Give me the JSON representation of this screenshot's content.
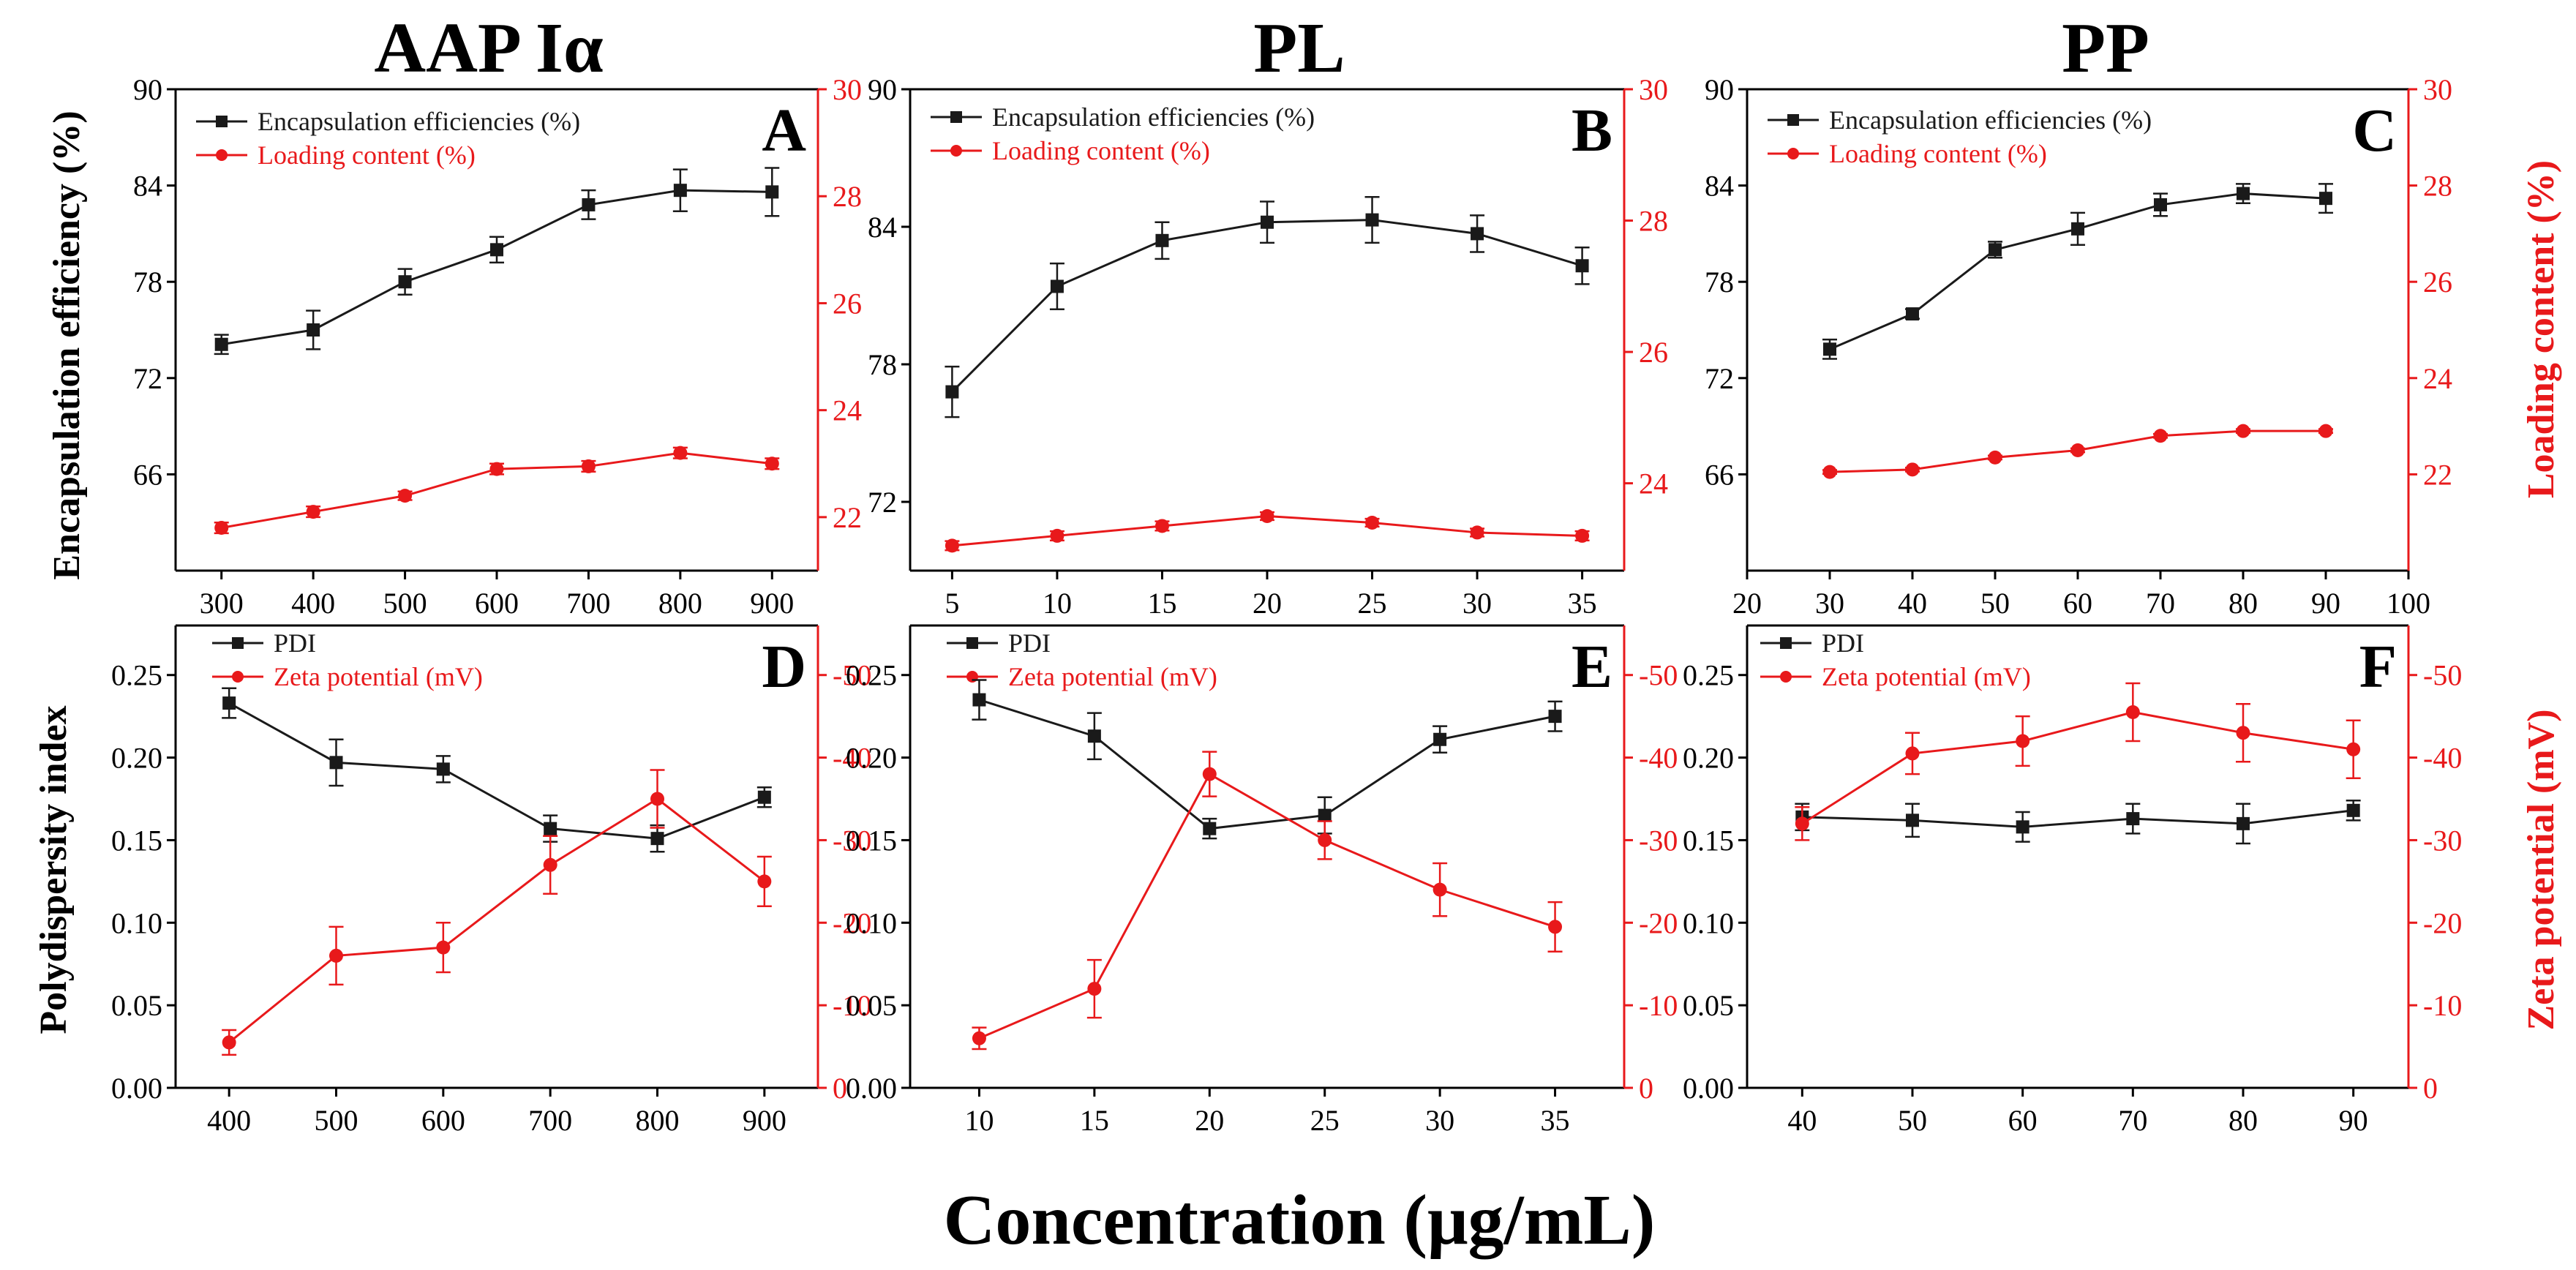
{
  "figure": {
    "column_titles": [
      "AAP Iα",
      "PL",
      "PP"
    ],
    "x_axis_title": "Concentration (μg/mL)",
    "row_axis_titles": {
      "top_left": "Encapsulation efficiency (%)",
      "top_right": "Loading content (%)",
      "bottom_left": "Polydispersity index",
      "bottom_right": "Zeta potential (mV)"
    },
    "colors": {
      "black_series": "#1a1a1a",
      "red_series": "#e8191b",
      "red_axis": "#e8191b"
    }
  },
  "chart_data": [
    {
      "panel": "A",
      "type": "line",
      "x": [
        300,
        400,
        500,
        600,
        700,
        800,
        900
      ],
      "xlim": [
        250,
        950
      ],
      "xticks": [
        300,
        400,
        500,
        600,
        700,
        800,
        900
      ],
      "ylim_left": [
        60,
        90
      ],
      "yticks_left": [
        66,
        72,
        78,
        84,
        90
      ],
      "ylim_right": [
        21,
        30
      ],
      "yticks_right": [
        22,
        24,
        26,
        28,
        30
      ],
      "legend": [
        "Encapsulation efficiencies (%)",
        "Loading content (%)"
      ],
      "series": [
        {
          "name": "Encapsulation efficiencies (%)",
          "axis": "left",
          "marker": "square",
          "values": [
            74.1,
            75.0,
            78.0,
            80.0,
            82.8,
            83.7,
            83.6
          ],
          "errors": [
            0.6,
            1.2,
            0.8,
            0.8,
            0.9,
            1.3,
            1.5
          ]
        },
        {
          "name": "Loading content (%)",
          "axis": "right",
          "marker": "circle",
          "values": [
            21.8,
            22.1,
            22.4,
            22.9,
            22.95,
            23.2,
            23.0
          ],
          "errors": [
            0.1,
            0.1,
            0.08,
            0.1,
            0.1,
            0.1,
            0.1
          ]
        }
      ]
    },
    {
      "panel": "B",
      "type": "line",
      "x": [
        5,
        10,
        15,
        20,
        25,
        30,
        35
      ],
      "xlim": [
        3,
        37
      ],
      "xticks": [
        5,
        10,
        15,
        20,
        25,
        30,
        35
      ],
      "ylim_left": [
        69,
        90
      ],
      "yticks_left": [
        72,
        78,
        84,
        90
      ],
      "ylim_right": [
        22.67,
        30
      ],
      "yticks_right": [
        24,
        26,
        28,
        30
      ],
      "legend": [
        "Encapsulation efficiencies (%)",
        "Loading content (%)"
      ],
      "series": [
        {
          "name": "Encapsulation efficiencies (%)",
          "axis": "left",
          "marker": "square",
          "values": [
            76.8,
            81.4,
            83.4,
            84.2,
            84.3,
            83.7,
            82.3
          ],
          "errors": [
            1.1,
            1.0,
            0.8,
            0.9,
            1.0,
            0.8,
            0.8
          ]
        },
        {
          "name": "Loading content (%)",
          "axis": "right",
          "marker": "circle",
          "values": [
            23.05,
            23.2,
            23.35,
            23.5,
            23.4,
            23.25,
            23.2
          ],
          "errors": [
            0.07,
            0.07,
            0.07,
            0.06,
            0.06,
            0.06,
            0.07
          ]
        }
      ]
    },
    {
      "panel": "C",
      "type": "line",
      "x": [
        30,
        40,
        50,
        60,
        70,
        80,
        90
      ],
      "xlim": [
        20,
        100
      ],
      "xticks": [
        20,
        30,
        40,
        50,
        60,
        70,
        80,
        90,
        100
      ],
      "ylim_left": [
        60,
        90
      ],
      "yticks_left": [
        66,
        72,
        78,
        84,
        90
      ],
      "ylim_right": [
        20,
        30
      ],
      "yticks_right": [
        22,
        24,
        26,
        28,
        30
      ],
      "legend": [
        "Encapsulation efficiencies (%)",
        "Loading content (%)"
      ],
      "series": [
        {
          "name": "Encapsulation efficiencies (%)",
          "axis": "left",
          "marker": "square",
          "values": [
            73.8,
            76.0,
            80.0,
            81.3,
            82.8,
            83.5,
            83.2
          ],
          "errors": [
            0.6,
            0.3,
            0.5,
            1.0,
            0.7,
            0.6,
            0.9
          ]
        },
        {
          "name": "Loading content (%)",
          "axis": "right",
          "marker": "circle",
          "values": [
            22.05,
            22.1,
            22.35,
            22.5,
            22.8,
            22.9,
            22.9
          ],
          "errors": [
            0.04,
            0.04,
            0.04,
            0.04,
            0.04,
            0.04,
            0.04
          ]
        }
      ]
    },
    {
      "panel": "D",
      "type": "line",
      "x": [
        400,
        500,
        600,
        700,
        800,
        900
      ],
      "xlim": [
        350,
        950
      ],
      "xticks": [
        400,
        500,
        600,
        700,
        800,
        900
      ],
      "ylim_left": [
        0,
        0.28
      ],
      "yticks_left": [
        0.0,
        0.05,
        0.1,
        0.15,
        0.2,
        0.25
      ],
      "ylim_right": [
        0,
        -56
      ],
      "yticks_right": [
        0,
        -10,
        -20,
        -30,
        -40,
        -50
      ],
      "legend": [
        "PDI",
        "Zeta potential (mV)"
      ],
      "series": [
        {
          "name": "PDI",
          "axis": "left",
          "marker": "square",
          "values": [
            0.233,
            0.197,
            0.193,
            0.157,
            0.151,
            0.176
          ],
          "errors": [
            0.009,
            0.014,
            0.008,
            0.008,
            0.008,
            0.006
          ]
        },
        {
          "name": "Zeta potential (mV)",
          "axis": "right",
          "marker": "circle",
          "values": [
            -5.5,
            -16,
            -17,
            -27,
            -35,
            -25
          ],
          "errors": [
            1.5,
            3.5,
            3.0,
            3.5,
            3.5,
            3.0
          ]
        }
      ]
    },
    {
      "panel": "E",
      "type": "line",
      "x": [
        10,
        15,
        20,
        25,
        30,
        35
      ],
      "xlim": [
        7,
        38
      ],
      "xticks": [
        10,
        15,
        20,
        25,
        30,
        35
      ],
      "ylim_left": [
        0,
        0.28
      ],
      "yticks_left": [
        0.0,
        0.05,
        0.1,
        0.15,
        0.2,
        0.25
      ],
      "ylim_right": [
        0,
        -56
      ],
      "yticks_right": [
        0,
        -10,
        -20,
        -30,
        -40,
        -50
      ],
      "legend": [
        "PDI",
        "Zeta potential (mV)"
      ],
      "series": [
        {
          "name": "PDI",
          "axis": "left",
          "marker": "square",
          "values": [
            0.235,
            0.213,
            0.157,
            0.165,
            0.211,
            0.225
          ],
          "errors": [
            0.012,
            0.014,
            0.006,
            0.011,
            0.008,
            0.009
          ]
        },
        {
          "name": "Zeta potential (mV)",
          "axis": "right",
          "marker": "circle",
          "values": [
            -6,
            -12,
            -38,
            -30,
            -24,
            -19.5
          ],
          "errors": [
            1.3,
            3.5,
            2.7,
            2.3,
            3.2,
            3.0
          ]
        }
      ]
    },
    {
      "panel": "F",
      "type": "line",
      "x": [
        40,
        50,
        60,
        70,
        80,
        90
      ],
      "xlim": [
        35,
        95
      ],
      "xticks": [
        40,
        50,
        60,
        70,
        80,
        90
      ],
      "ylim_left": [
        0,
        0.28
      ],
      "yticks_left": [
        0.0,
        0.05,
        0.1,
        0.15,
        0.2,
        0.25
      ],
      "ylim_right": [
        0,
        -56
      ],
      "yticks_right": [
        0,
        -10,
        -20,
        -30,
        -40,
        -50
      ],
      "legend": [
        "PDI",
        "Zeta potential (mV)"
      ],
      "series": [
        {
          "name": "PDI",
          "axis": "left",
          "marker": "square",
          "values": [
            0.164,
            0.162,
            0.158,
            0.163,
            0.16,
            0.168
          ],
          "errors": [
            0.008,
            0.01,
            0.009,
            0.009,
            0.012,
            0.006
          ]
        },
        {
          "name": "Zeta potential (mV)",
          "axis": "right",
          "marker": "circle",
          "values": [
            -32,
            -40.5,
            -42,
            -45.5,
            -43,
            -41
          ],
          "errors": [
            2.0,
            2.5,
            3.0,
            3.5,
            3.5,
            3.5
          ]
        }
      ]
    }
  ]
}
